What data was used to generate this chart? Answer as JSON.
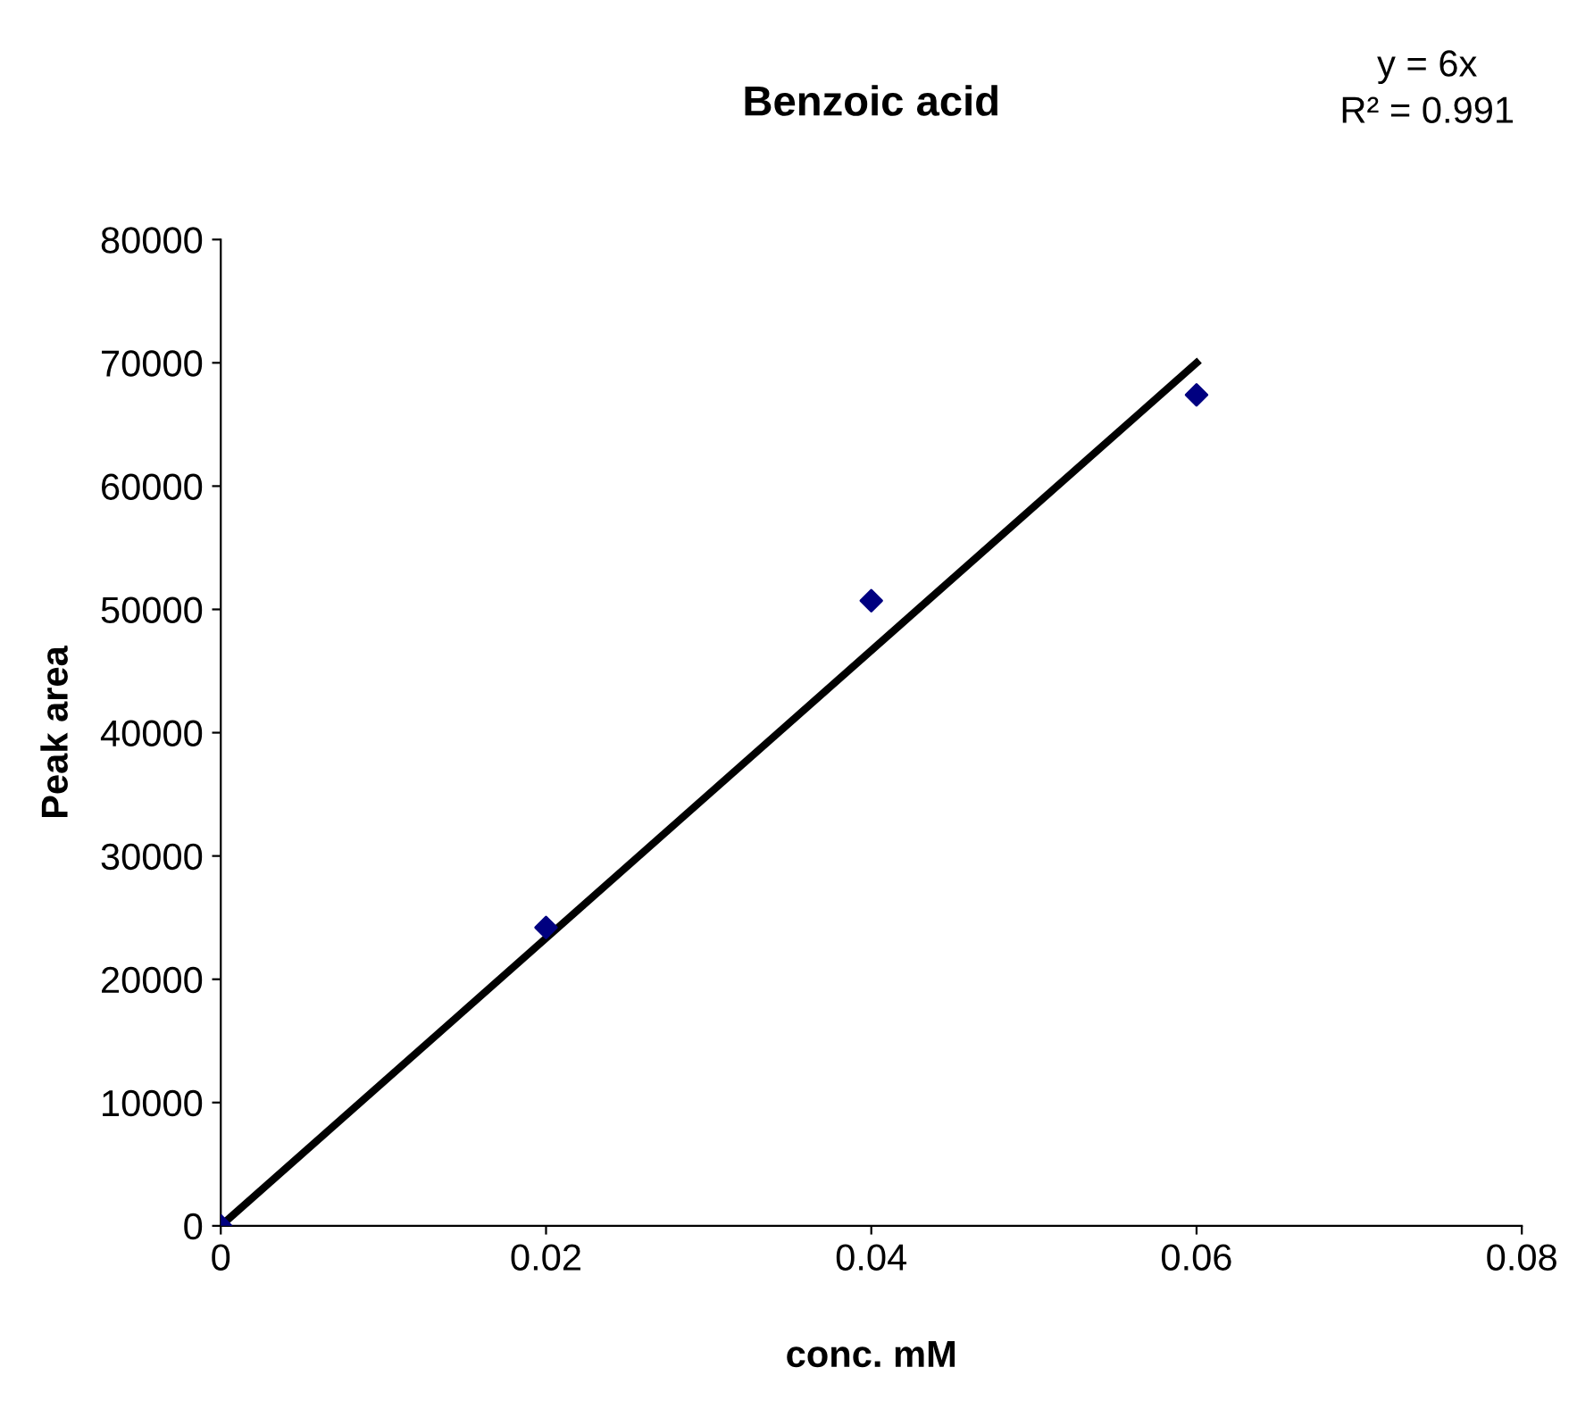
{
  "chart_data": {
    "type": "scatter",
    "title": "Benzoic acid",
    "xlabel": "conc. mM",
    "ylabel": "Peak area",
    "annotations": [
      "y = 6x",
      "R² = 0.991"
    ],
    "x": [
      0,
      0.02,
      0.04,
      0.06
    ],
    "series": [
      {
        "color": "#000080",
        "marker": "diamond",
        "values": [
          0,
          24200,
          50700,
          67400
        ]
      },
      {
        "type": "line",
        "color": "#000000",
        "marker": "none",
        "line_style": "solid",
        "x": [
          0,
          0.06
        ],
        "values": [
          0,
          70000
        ]
      }
    ],
    "xlim": [
      0,
      0.08
    ],
    "xticks": [
      0,
      0.02,
      0.04,
      0.06,
      0.08
    ],
    "ylim": [
      0,
      80000
    ],
    "yticks": [
      0,
      10000,
      20000,
      30000,
      40000,
      50000,
      60000,
      70000,
      80000
    ],
    "grid": false,
    "legend": false
  }
}
